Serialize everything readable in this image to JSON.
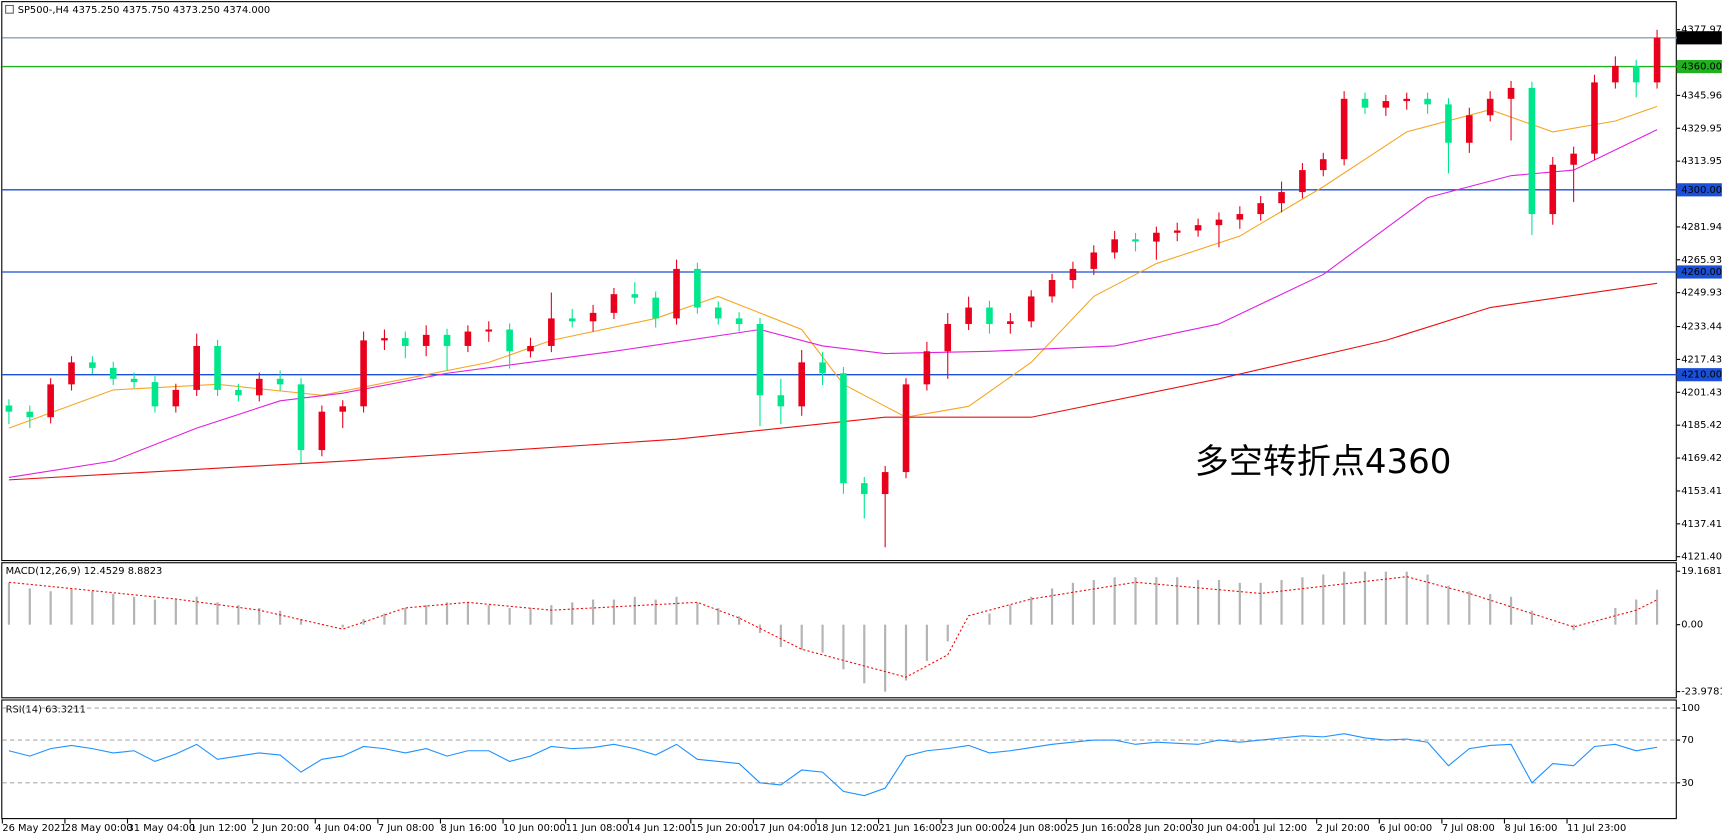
{
  "chart_data": {
    "type": "candlestick",
    "title": "SP500-,H4  4375.250 4375.750 4373.250 4374.000",
    "annotation": "多空转折点4360",
    "annotation_color": "#e8101c",
    "up_color": "#e8001c",
    "down_color": "#00e68c",
    "categories": [
      "26 May 2021",
      null,
      null,
      "28 May 00:00",
      null,
      null,
      "31 May 04:00",
      null,
      null,
      "1 Jun 12:00",
      null,
      null,
      "2 Jun 20:00",
      null,
      null,
      "4 Jun 04:00",
      null,
      null,
      "7 Jun 08:00",
      null,
      null,
      "8 Jun 16:00",
      null,
      null,
      "10 Jun 00:00",
      null,
      null,
      "11 Jun 08:00",
      null,
      null,
      "14 Jun 12:00",
      null,
      null,
      "15 Jun 20:00",
      null,
      null,
      "17 Jun 04:00",
      null,
      null,
      "18 Jun 12:00",
      null,
      null,
      "21 Jun 16:00",
      null,
      null,
      "23 Jun 00:00",
      null,
      null,
      "24 Jun 08:00",
      null,
      null,
      "25 Jun 16:00",
      null,
      null,
      "28 Jun 20:00",
      null,
      null,
      "30 Jun 04:00",
      null,
      null,
      "1 Jul 12:00",
      null,
      null,
      "2 Jul 20:00",
      null,
      null,
      "6 Jul 00:00",
      null,
      null,
      "7 Jul 08:00",
      null,
      null,
      "8 Jul 16:00",
      null,
      null,
      "11 Jul 23:00",
      null,
      null,
      null,
      null
    ],
    "open": [
      4195.0,
      4192.0,
      4189.3,
      4205.3,
      4216.0,
      4213.3,
      4208.0,
      4206.4,
      4194.6,
      4202.6,
      4224.0,
      4202.6,
      4200.0,
      4208.0,
      4205.3,
      4173.3,
      4192.0,
      4194.6,
      4226.7,
      4227.8,
      4224.0,
      4229.4,
      4224.0,
      4231.0,
      4232.0,
      4221.4,
      4224.0,
      4237.4,
      4236.0,
      4240.1,
      4249.2,
      4247.5,
      4237.4,
      4261.5,
      4242.7,
      4237.4,
      4234.7,
      4200.0,
      4194.6,
      4216.0,
      4210.7,
      4157.2,
      4151.9,
      4162.6,
      4205.3,
      4221.4,
      4234.7,
      4242.7,
      4234.7,
      4236.0,
      4248.1,
      4256.1,
      4261.5,
      4269.5,
      4275.9,
      4274.8,
      4279.1,
      4280.2,
      4282.8,
      4285.5,
      4288.2,
      4293.5,
      4298.9,
      4309.6,
      4314.9,
      4344.3,
      4340.0,
      4343.2,
      4344.3,
      4341.6,
      4322.9,
      4336.3,
      4344.3,
      4349.6,
      4288.2,
      4312.2,
      4317.6,
      4352.3,
      4360.3,
      4352.3
    ],
    "high": [
      4198.0,
      4195.0,
      4208.3,
      4219.0,
      4219.0,
      4216.3,
      4211.0,
      4209.4,
      4205.6,
      4230.0,
      4227.0,
      4205.6,
      4211.0,
      4212.0,
      4208.3,
      4195.0,
      4197.6,
      4231.0,
      4232.0,
      4231.0,
      4234.0,
      4232.4,
      4234.0,
      4236.0,
      4235.0,
      4228.0,
      4250.0,
      4242.0,
      4244.0,
      4252.2,
      4255.0,
      4250.5,
      4266.0,
      4264.5,
      4245.7,
      4240.4,
      4237.7,
      4208.0,
      4222.0,
      4221.0,
      4213.7,
      4160.2,
      4165.6,
      4208.3,
      4226.0,
      4240.0,
      4248.0,
      4246.0,
      4240.0,
      4251.1,
      4259.1,
      4265.0,
      4273.0,
      4280.0,
      4279.0,
      4282.1,
      4284.0,
      4286.0,
      4289.0,
      4292.0,
      4297.0,
      4304.0,
      4313.0,
      4318.0,
      4348.0,
      4347.3,
      4346.2,
      4347.3,
      4347.3,
      4344.6,
      4340.0,
      4348.0,
      4353.0,
      4352.6,
      4316.0,
      4321.0,
      4356.0,
      4365.0,
      4363.3,
      4377.9
    ],
    "low": [
      4186.0,
      4184.0,
      4186.3,
      4202.3,
      4210.3,
      4205.0,
      4203.4,
      4191.6,
      4191.6,
      4199.6,
      4199.6,
      4197.0,
      4197.0,
      4202.3,
      4167.0,
      4170.3,
      4184.0,
      4191.6,
      4222.0,
      4218.0,
      4219.0,
      4212.0,
      4221.0,
      4226.0,
      4213.0,
      4218.4,
      4221.0,
      4233.0,
      4231.0,
      4237.1,
      4244.5,
      4233.0,
      4234.4,
      4239.7,
      4234.4,
      4231.0,
      4185.0,
      4186.0,
      4190.0,
      4205.0,
      4152.0,
      4140.0,
      4126.0,
      4159.6,
      4202.3,
      4208.0,
      4231.7,
      4230.0,
      4230.0,
      4233.0,
      4245.1,
      4252.0,
      4258.5,
      4266.5,
      4270.0,
      4266.0,
      4275.0,
      4277.2,
      4272.0,
      4281.0,
      4285.0,
      4289.0,
      4295.9,
      4306.6,
      4311.9,
      4337.0,
      4336.0,
      4339.0,
      4337.0,
      4308.0,
      4318.0,
      4333.3,
      4324.0,
      4278.0,
      4283.0,
      4294.0,
      4314.6,
      4349.3,
      4345.0,
      4349.3
    ],
    "close": [
      4192.0,
      4189.3,
      4205.3,
      4216.0,
      4213.3,
      4208.0,
      4206.4,
      4194.6,
      4202.6,
      4224.0,
      4202.6,
      4200.0,
      4208.0,
      4205.3,
      4173.3,
      4192.0,
      4194.6,
      4226.7,
      4227.8,
      4224.0,
      4229.4,
      4224.0,
      4231.0,
      4232.0,
      4221.4,
      4224.0,
      4237.4,
      4236.0,
      4240.1,
      4249.2,
      4247.5,
      4237.4,
      4261.5,
      4242.7,
      4237.4,
      4234.7,
      4200.0,
      4194.6,
      4216.0,
      4210.7,
      4157.2,
      4151.9,
      4162.6,
      4205.3,
      4221.4,
      4234.7,
      4242.7,
      4234.7,
      4236.0,
      4248.1,
      4256.1,
      4261.5,
      4269.5,
      4275.9,
      4274.8,
      4279.1,
      4280.2,
      4282.8,
      4285.5,
      4288.2,
      4293.5,
      4298.9,
      4309.6,
      4314.9,
      4344.3,
      4340.0,
      4343.2,
      4344.3,
      4341.6,
      4322.9,
      4336.3,
      4344.3,
      4349.6,
      4288.2,
      4312.2,
      4317.6,
      4352.3,
      4360.3,
      4352.3,
      4374.0
    ],
    "ylim": [
      4119.8,
      4392.4
    ],
    "yticks": [
      {
        "value": 4377.97,
        "label": "4377.970"
      },
      {
        "value": 4345.96,
        "label": "4345.960"
      },
      4329.955,
      4313.95,
      4281.94,
      4265.935,
      4249.93,
      4233.445,
      4217.435,
      4201.43,
      4185.425,
      4169.42,
      4153.415,
      4137.41,
      4121.405
    ],
    "levels": [
      {
        "value": 4374,
        "label": "4374.000",
        "color": "#8fa3b0",
        "label_color": "#000000"
      },
      {
        "value": 4360,
        "label": "4360.000",
        "color": "#20b020",
        "label_color": "#20b020"
      },
      {
        "value": 4300,
        "label": "4300.000",
        "color": "#1a4fd8",
        "label_color": "#1a4fd8"
      },
      {
        "value": 4260,
        "label": "4260.000",
        "color": "#1a4fd8",
        "label_color": "#1a4fd8"
      },
      {
        "value": 4210,
        "label": "4210.000",
        "color": "#1a4fd8",
        "label_color": "#1a4fd8"
      }
    ],
    "moving_averages": [
      {
        "color": "#f5a623",
        "x": [
          0,
          5,
          10,
          15,
          19,
          23,
          26,
          31,
          34,
          38,
          40,
          43,
          46,
          49,
          52,
          55,
          59,
          63,
          67,
          71,
          74,
          77,
          79
        ],
        "values": [
          4184,
          4202.6,
          4205.3,
          4200,
          4208,
          4216,
          4226.7,
          4237.4,
          4248.1,
          4232,
          4205.3,
          4189.3,
          4194.6,
          4216,
          4248.1,
          4264.1,
          4277.5,
          4301.5,
          4328.2,
          4339,
          4328.2,
          4333.5,
          4340.6
        ]
      },
      {
        "color": "#e020e0",
        "x": [
          0,
          5,
          9,
          13,
          16,
          21,
          29,
          36,
          39,
          42,
          47,
          53,
          58,
          63,
          68,
          72,
          75,
          79
        ],
        "values": [
          4160,
          4168,
          4184,
          4197.3,
          4201,
          4210.7,
          4221.4,
          4232,
          4224,
          4220.3,
          4221.4,
          4224,
          4234.7,
          4258.8,
          4296.2,
          4306.9,
          4309.6,
          4329.3
        ]
      },
      {
        "color": "#e81010",
        "x": [
          0,
          16,
          32,
          42,
          49,
          58,
          66,
          71,
          79
        ],
        "values": [
          4158.8,
          4167.9,
          4178.6,
          4189.3,
          4189.3,
          4208,
          4226.7,
          4242.7,
          4254.5
        ]
      }
    ],
    "macd": {
      "label": "MACD(12,26,9) 12.4529 8.8823",
      "color": "#b4b4b4",
      "values": [
        15,
        13,
        12,
        13,
        12,
        11,
        10,
        9,
        9,
        10,
        8,
        7,
        6,
        5,
        2,
        0,
        -1,
        2,
        4,
        6,
        7,
        8,
        8,
        7,
        6,
        6,
        7,
        8,
        9,
        9,
        10,
        9,
        10,
        8,
        6,
        3,
        -3,
        -8,
        -9,
        -10,
        -16,
        -21,
        -24,
        -20,
        -13,
        -6,
        0,
        4,
        7,
        10,
        13,
        15,
        16,
        17,
        17,
        17,
        17,
        16,
        16,
        15,
        15,
        16,
        17,
        18,
        19,
        19,
        19,
        19,
        18,
        14,
        12,
        11,
        10,
        5,
        0,
        -2,
        0,
        6,
        9,
        12.5
      ],
      "signal": {
        "color": "#e81010",
        "x": [
          0,
          8,
          12,
          16,
          19,
          22,
          26,
          33,
          35,
          38,
          40,
          43,
          45,
          46,
          49,
          54,
          60,
          67,
          70,
          75,
          78,
          79
        ],
        "values": [
          15.2,
          9.2,
          5.2,
          -1.6,
          6,
          8,
          5.2,
          8,
          2.4,
          -8.8,
          -12.8,
          -18.8,
          -10.8,
          3.2,
          9.2,
          15.2,
          11.2,
          17.2,
          11.2,
          -0.8,
          5.2,
          8.9
        ]
      },
      "ylim": [
        -26.4,
        22
      ],
      "yticks": [
        19.1681,
        {
          "value": 0,
          "label": "0.00"
        },
        -23.9781
      ]
    },
    "rsi": {
      "label": "RSI(14) 63.3211",
      "color": "#1e90ff",
      "values": [
        60,
        55,
        62,
        65,
        62,
        58,
        60,
        50,
        57,
        66,
        52,
        55,
        58,
        56,
        40,
        52,
        55,
        64,
        62,
        58,
        62,
        55,
        60,
        60,
        50,
        55,
        64,
        62,
        63,
        66,
        62,
        56,
        66,
        52,
        50,
        48,
        30,
        28,
        42,
        40,
        22,
        18,
        25,
        55,
        60,
        62,
        65,
        58,
        60,
        63,
        66,
        68,
        70,
        70,
        66,
        68,
        67,
        66,
        70,
        68,
        70,
        72,
        74,
        73,
        76,
        72,
        70,
        71,
        68,
        46,
        62,
        65,
        66,
        30,
        48,
        46,
        64,
        66,
        60,
        63.3
      ],
      "ylim": [
        -4,
        107
      ],
      "yticks": [
        100,
        70,
        30
      ],
      "grid": true
    }
  }
}
